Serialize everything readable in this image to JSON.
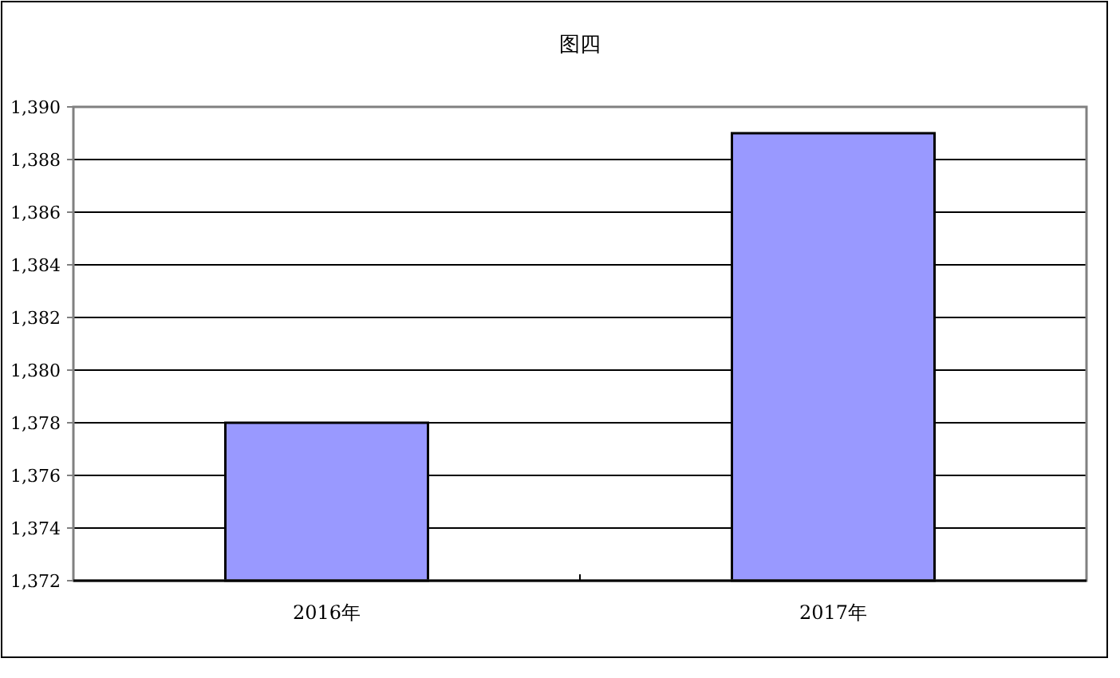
{
  "chart_data": {
    "type": "bar",
    "title": "图四",
    "categories": [
      "2016年",
      "2017年"
    ],
    "values": [
      1378,
      1389
    ],
    "color": "#9999ff",
    "ylim": [
      1372,
      1390
    ],
    "yticks": [
      {
        "value": 1372,
        "label": "1,372"
      },
      {
        "value": 1374,
        "label": "1,374"
      },
      {
        "value": 1376,
        "label": "1,376"
      },
      {
        "value": 1378,
        "label": "1,378"
      },
      {
        "value": 1380,
        "label": "1,380"
      },
      {
        "value": 1382,
        "label": "1,382"
      },
      {
        "value": 1384,
        "label": "1,384"
      },
      {
        "value": 1386,
        "label": "1,386"
      },
      {
        "value": 1388,
        "label": "1,388"
      },
      {
        "value": 1390,
        "label": "1,390"
      }
    ],
    "grid": "y"
  }
}
